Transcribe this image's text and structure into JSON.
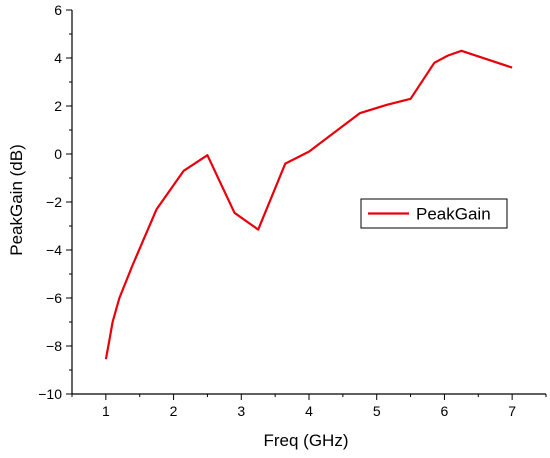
{
  "chart_data": {
    "type": "line",
    "xlabel": "Freq (GHz)",
    "ylabel": "PeakGain (dB)",
    "xlim": [
      0.5,
      7.5
    ],
    "ylim": [
      -10,
      6
    ],
    "x_ticks": [
      "1",
      "2",
      "3",
      "4",
      "5",
      "6",
      "7"
    ],
    "y_ticks": [
      "6",
      "4",
      "2",
      "0",
      "−2",
      "−4",
      "−6",
      "−8",
      "−10"
    ],
    "legend": {
      "position": "right-middle"
    },
    "series": [
      {
        "name": "PeakGain",
        "color": "#e8000b",
        "x": [
          1.0,
          1.05,
          1.1,
          1.2,
          1.4,
          1.75,
          2.15,
          2.5,
          2.9,
          3.25,
          3.65,
          4.0,
          4.75,
          5.15,
          5.5,
          5.85,
          6.05,
          6.25,
          7.0
        ],
        "y": [
          -8.55,
          -7.8,
          -7.0,
          -6.0,
          -4.6,
          -2.3,
          -0.7,
          -0.05,
          -2.45,
          -3.15,
          -0.4,
          0.1,
          1.7,
          2.05,
          2.3,
          3.8,
          4.1,
          4.3,
          3.6
        ]
      }
    ]
  }
}
